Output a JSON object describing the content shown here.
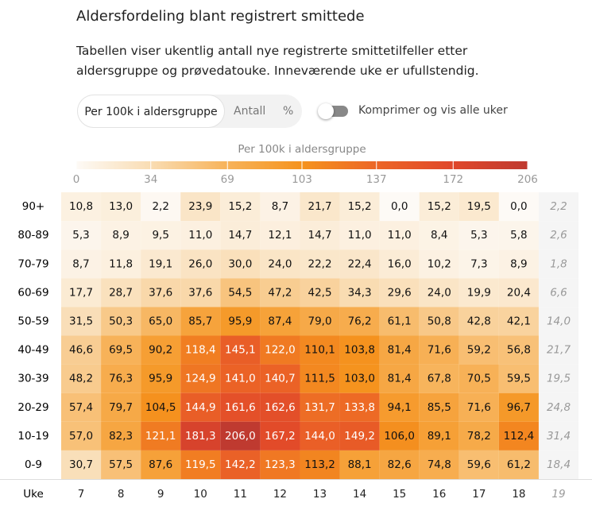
{
  "controls": {
    "tabs": [
      "Per 100k i aldersgruppe",
      "Antall",
      "%"
    ],
    "toggle": "Komprimer og vis alle uker"
  },
  "chart_data": {
    "type": "heatmap",
    "title": "Aldersfordeling blant registrert smittede",
    "subtitle": "Tabellen viser ukentlig antall nye registrerte smittetilfeller etter aldersgruppe og prøvedatouke. Inneværende uke er ufullstendig.",
    "x_label": "Uke",
    "x": [
      "7",
      "8",
      "9",
      "10",
      "11",
      "12",
      "13",
      "14",
      "15",
      "16",
      "17",
      "18",
      "19"
    ],
    "y": [
      "90+",
      "80-89",
      "70-79",
      "60-69",
      "50-59",
      "40-49",
      "30-39",
      "20-29",
      "10-19",
      "0-9"
    ],
    "incomplete_last": true,
    "values": [
      [
        10.8,
        13.0,
        2.2,
        23.9,
        15.2,
        8.7,
        21.7,
        15.2,
        0.0,
        15.2,
        19.5,
        0.0,
        2.2
      ],
      [
        5.3,
        8.9,
        9.5,
        11.0,
        14.7,
        12.1,
        14.7,
        11.0,
        11.0,
        8.4,
        5.3,
        5.8,
        2.6
      ],
      [
        8.7,
        11.8,
        19.1,
        26.0,
        30.0,
        24.0,
        22.2,
        22.4,
        16.0,
        10.2,
        7.3,
        8.9,
        1.8
      ],
      [
        17.7,
        28.7,
        37.6,
        37.6,
        54.5,
        47.2,
        42.5,
        34.3,
        29.6,
        24.0,
        19.9,
        20.4,
        6.6
      ],
      [
        31.5,
        50.3,
        65.0,
        85.7,
        95.9,
        87.4,
        79.0,
        76.2,
        61.1,
        50.8,
        42.8,
        42.1,
        14.0
      ],
      [
        46.6,
        69.5,
        90.2,
        118.4,
        145.1,
        122.0,
        110.1,
        103.8,
        81.4,
        71.6,
        59.2,
        56.8,
        21.7
      ],
      [
        48.2,
        76.3,
        95.9,
        124.9,
        141.0,
        140.7,
        111.5,
        103.0,
        81.4,
        67.8,
        70.5,
        59.5,
        19.5
      ],
      [
        57.4,
        79.7,
        104.5,
        144.9,
        161.6,
        162.6,
        131.7,
        133.8,
        94.1,
        85.5,
        71.6,
        96.7,
        24.8
      ],
      [
        57.0,
        82.3,
        121.1,
        181.3,
        206.0,
        167.2,
        144.0,
        149.2,
        106.0,
        89.1,
        78.2,
        112.4,
        31.4
      ],
      [
        30.7,
        57.5,
        87.6,
        119.5,
        142.2,
        123.3,
        113.2,
        88.1,
        82.6,
        74.8,
        59.6,
        61.2,
        18.4
      ]
    ],
    "value_labels": [
      [
        "10,8",
        "13,0",
        "2,2",
        "23,9",
        "15,2",
        "8,7",
        "21,7",
        "15,2",
        "0,0",
        "15,2",
        "19,5",
        "0,0",
        "2,2"
      ],
      [
        "5,3",
        "8,9",
        "9,5",
        "11,0",
        "14,7",
        "12,1",
        "14,7",
        "11,0",
        "11,0",
        "8,4",
        "5,3",
        "5,8",
        "2,6"
      ],
      [
        "8,7",
        "11,8",
        "19,1",
        "26,0",
        "30,0",
        "24,0",
        "22,2",
        "22,4",
        "16,0",
        "10,2",
        "7,3",
        "8,9",
        "1,8"
      ],
      [
        "17,7",
        "28,7",
        "37,6",
        "37,6",
        "54,5",
        "47,2",
        "42,5",
        "34,3",
        "29,6",
        "24,0",
        "19,9",
        "20,4",
        "6,6"
      ],
      [
        "31,5",
        "50,3",
        "65,0",
        "85,7",
        "95,9",
        "87,4",
        "79,0",
        "76,2",
        "61,1",
        "50,8",
        "42,8",
        "42,1",
        "14,0"
      ],
      [
        "46,6",
        "69,5",
        "90,2",
        "118,4",
        "145,1",
        "122,0",
        "110,1",
        "103,8",
        "81,4",
        "71,6",
        "59,2",
        "56,8",
        "21,7"
      ],
      [
        "48,2",
        "76,3",
        "95,9",
        "124,9",
        "141,0",
        "140,7",
        "111,5",
        "103,0",
        "81,4",
        "67,8",
        "70,5",
        "59,5",
        "19,5"
      ],
      [
        "57,4",
        "79,7",
        "104,5",
        "144,9",
        "161,6",
        "162,6",
        "131,7",
        "133,8",
        "94,1",
        "85,5",
        "71,6",
        "96,7",
        "24,8"
      ],
      [
        "57,0",
        "82,3",
        "121,1",
        "181,3",
        "206,0",
        "167,2",
        "144,0",
        "149,2",
        "106,0",
        "89,1",
        "78,2",
        "112,4",
        "31,4"
      ],
      [
        "30,7",
        "57,5",
        "87,6",
        "119,5",
        "142,2",
        "123,3",
        "113,2",
        "88,1",
        "82,6",
        "74,8",
        "59,6",
        "61,2",
        "18,4"
      ]
    ],
    "colorbar": {
      "title": "Per 100k i aldersgruppe",
      "lim": [
        0,
        206
      ],
      "ticks": [
        0,
        34,
        69,
        103,
        137,
        172,
        206
      ],
      "colors": [
        "#fdfaf6",
        "#f9dcb2",
        "#f7b35a",
        "#f5931e",
        "#ec6526",
        "#e0472a",
        "#bf3a30"
      ]
    }
  }
}
